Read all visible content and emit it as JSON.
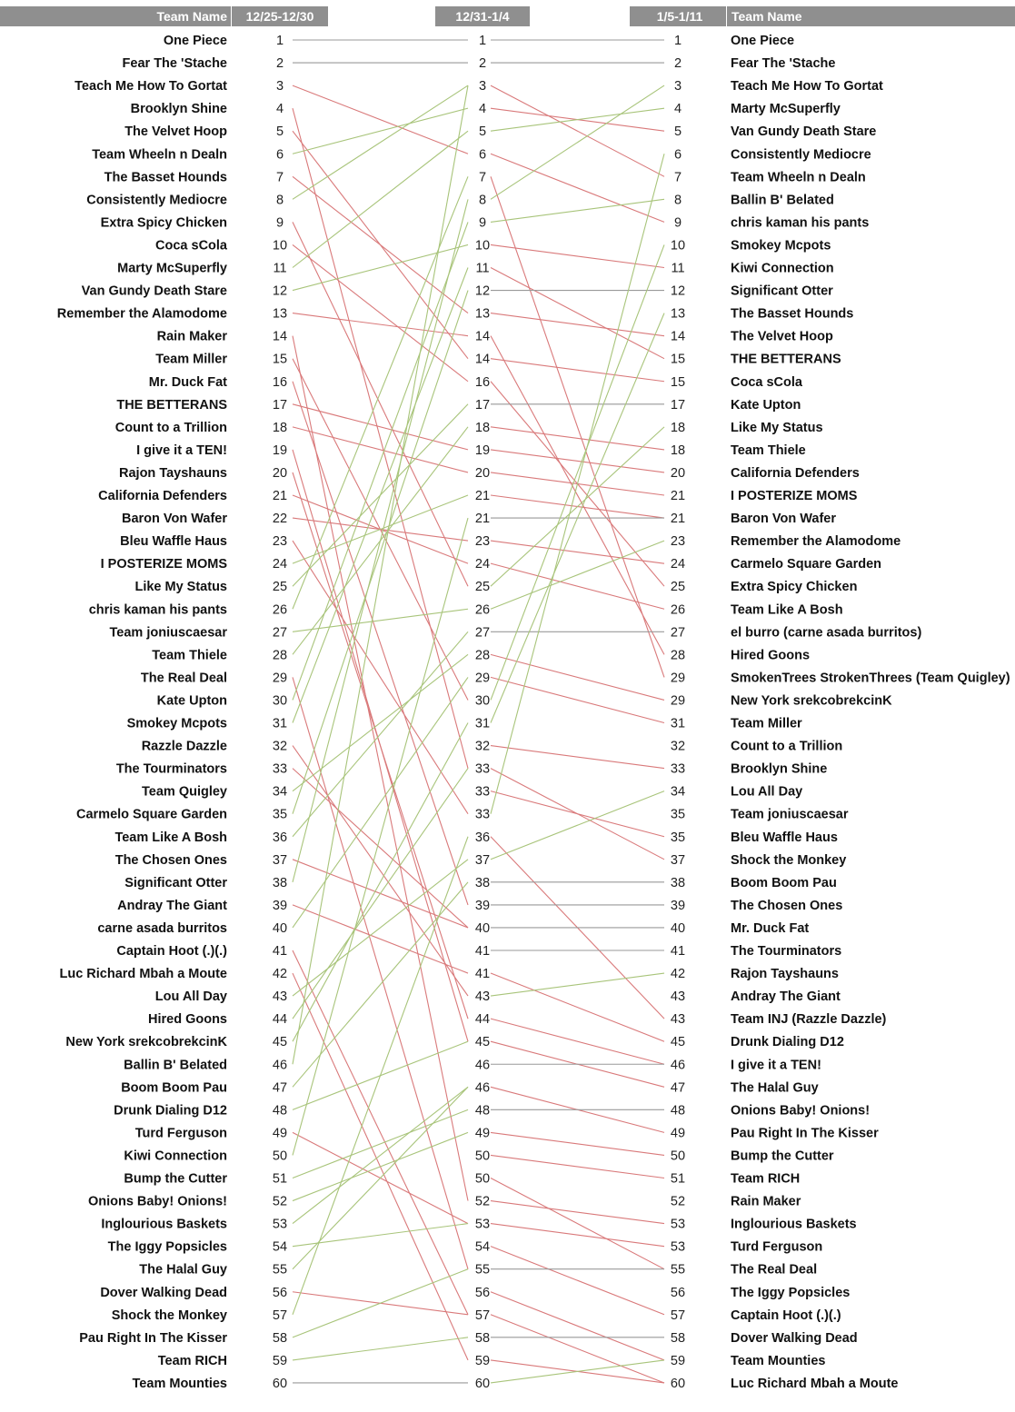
{
  "chart_data": {
    "type": "slope",
    "headers": {
      "left_name": "Team Name",
      "col1": "12/25-12/30",
      "col2": "12/31-1/4",
      "col3": "1/5-1/11",
      "right_name": "Team Name"
    },
    "left_teams": [
      "One Piece",
      "Fear The 'Stache",
      "Teach Me How To Gortat",
      "Brooklyn Shine",
      "The Velvet Hoop",
      "Team Wheeln n Dealn",
      "The Basset Hounds",
      "Consistently Mediocre",
      "Extra Spicy Chicken",
      "Coca sCola",
      "Marty McSuperfly",
      "Van Gundy Death Stare",
      "Remember the Alamodome",
      "Rain Maker",
      "Team Miller",
      "Mr. Duck Fat",
      "THE BETTERANS",
      "Count to a Trillion",
      "I give it a TEN!",
      "Rajon Tayshauns",
      "California Defenders",
      "Baron Von Wafer",
      "Bleu Waffle Haus",
      "I POSTERIZE MOMS",
      "Like My Status",
      "chris kaman his pants",
      "Team joniuscaesar",
      "Team Thiele",
      "The Real Deal",
      "Kate Upton",
      "Smokey Mcpots",
      "Razzle Dazzle",
      "The Tourminators",
      "Team Quigley",
      "Carmelo Square Garden",
      "Team Like A Bosh",
      "The Chosen Ones",
      "Significant Otter",
      "Andray The Giant",
      "carne asada burritos",
      "Captain Hoot (.)(.)",
      "Luc Richard Mbah a Moute",
      "Lou All Day",
      "Hired Goons",
      "New York srekcobrekcinK",
      "Ballin B' Belated",
      "Boom Boom Pau",
      "Drunk Dialing D12",
      "Turd Ferguson",
      "Kiwi Connection",
      "Bump the Cutter",
      "Onions Baby! Onions!",
      "Inglourious Baskets",
      "The Iggy Popsicles",
      "The Halal Guy",
      "Dover Walking Dead",
      "Shock the Monkey",
      "Pau Right In The Kisser",
      "Team RICH",
      "Team Mounties"
    ],
    "right_teams": [
      "One Piece",
      "Fear The 'Stache",
      "Teach Me How To Gortat",
      "Marty McSuperfly",
      "Van Gundy Death Stare",
      "Consistently Mediocre",
      "Team Wheeln n Dealn",
      "Ballin B' Belated",
      "chris kaman his pants",
      "Smokey Mcpots",
      "Kiwi Connection",
      "Significant Otter",
      "The Basset Hounds",
      "The Velvet Hoop",
      "THE BETTERANS",
      "Coca sCola",
      "Kate Upton",
      "Like My Status",
      "Team Thiele",
      "California Defenders",
      "I POSTERIZE MOMS",
      "Baron Von Wafer",
      "Remember the Alamodome",
      "Carmelo Square Garden",
      "Extra Spicy Chicken",
      "Team Like A Bosh",
      "el burro (carne asada burritos)",
      "Hired Goons",
      "SmokenTrees StrokenThrees (Team Quigley)",
      "New York srekcobrekcinK",
      "Team Miller",
      "Count to a Trillion",
      "Brooklyn Shine",
      "Lou All Day",
      "Team joniuscaesar",
      "Bleu Waffle Haus",
      "Shock the Monkey",
      "Boom Boom Pau",
      "The Chosen Ones",
      "Mr. Duck Fat",
      "The Tourminators",
      "Rajon Tayshauns",
      "Andray The Giant",
      "Team INJ (Razzle Dazzle)",
      "Drunk Dialing D12",
      "I give it a TEN!",
      "The Halal Guy",
      "Onions Baby! Onions!",
      "Pau Right In The Kisser",
      "Bump the Cutter",
      "Team RICH",
      "Rain Maker",
      "Inglourious Baskets",
      "Turd Ferguson",
      "The Real Deal",
      "The Iggy Popsicles",
      "Captain Hoot (.)(.)",
      "Dover Walking Dead",
      "Team Mounties",
      "Luc Richard Mbah a Moute"
    ],
    "rank_labels_1": [
      "1",
      "2",
      "3",
      "4",
      "5",
      "6",
      "7",
      "8",
      "9",
      "10",
      "11",
      "12",
      "13",
      "14",
      "15",
      "16",
      "17",
      "18",
      "19",
      "20",
      "21",
      "22",
      "23",
      "24",
      "25",
      "26",
      "27",
      "28",
      "29",
      "30",
      "31",
      "32",
      "33",
      "34",
      "35",
      "36",
      "37",
      "38",
      "39",
      "40",
      "41",
      "42",
      "43",
      "44",
      "45",
      "46",
      "47",
      "48",
      "49",
      "50",
      "51",
      "52",
      "53",
      "54",
      "55",
      "56",
      "57",
      "58",
      "59",
      "60"
    ],
    "rank_labels_2": [
      "1",
      "2",
      "3",
      "4",
      "5",
      "6",
      "7",
      "8",
      "9",
      "10",
      "11",
      "12",
      "13",
      "14",
      "14",
      "16",
      "17",
      "18",
      "19",
      "20",
      "21",
      "21",
      "23",
      "24",
      "25",
      "26",
      "27",
      "28",
      "29",
      "30",
      "31",
      "32",
      "33",
      "33",
      "33",
      "36",
      "37",
      "38",
      "39",
      "40",
      "41",
      "41",
      "43",
      "44",
      "45",
      "46",
      "46",
      "48",
      "49",
      "50",
      "50",
      "52",
      "53",
      "54",
      "55",
      "56",
      "57",
      "58",
      "59",
      "60"
    ],
    "rank_labels_3": [
      "1",
      "2",
      "3",
      "4",
      "5",
      "6",
      "7",
      "8",
      "9",
      "10",
      "11",
      "12",
      "13",
      "14",
      "15",
      "15",
      "17",
      "18",
      "18",
      "20",
      "21",
      "21",
      "23",
      "24",
      "25",
      "26",
      "27",
      "28",
      "29",
      "29",
      "31",
      "32",
      "33",
      "34",
      "35",
      "35",
      "37",
      "38",
      "39",
      "40",
      "41",
      "42",
      "43",
      "43",
      "45",
      "46",
      "47",
      "48",
      "49",
      "50",
      "51",
      "52",
      "53",
      "53",
      "55",
      "56",
      "57",
      "58",
      "59",
      "60"
    ],
    "col2_slot_by_left": [
      1,
      2,
      6,
      33,
      15,
      4,
      13,
      3,
      25,
      16,
      5,
      10,
      14,
      52,
      30,
      39,
      19,
      20,
      45,
      44,
      24,
      23,
      35,
      21,
      17,
      7,
      26,
      18,
      55,
      9,
      11,
      43,
      40,
      28,
      12,
      27,
      40,
      8,
      42,
      29,
      57,
      59,
      37,
      33,
      31,
      3,
      38,
      45,
      53,
      22,
      48,
      49,
      47,
      53,
      47,
      57,
      36,
      55,
      58,
      60
    ],
    "col2_to_col3_slot": [
      1,
      2,
      7,
      5,
      4,
      9,
      29,
      3,
      8,
      11,
      15,
      12,
      14,
      28,
      16,
      25,
      17,
      19,
      20,
      21,
      22,
      22,
      24,
      26,
      18,
      23,
      27,
      30,
      31,
      10,
      13,
      33,
      37,
      36,
      6,
      44,
      34,
      38,
      39,
      40,
      41,
      45,
      42,
      46,
      47,
      46,
      49,
      48,
      50,
      51,
      55,
      53,
      54,
      57,
      55,
      59,
      60,
      58,
      60,
      59
    ],
    "colors": {
      "up": "#a8c47a",
      "down": "#d9797a",
      "flat": "#999999",
      "header_bg": "#8f8f8f"
    },
    "ylim": [
      1,
      60
    ]
  }
}
